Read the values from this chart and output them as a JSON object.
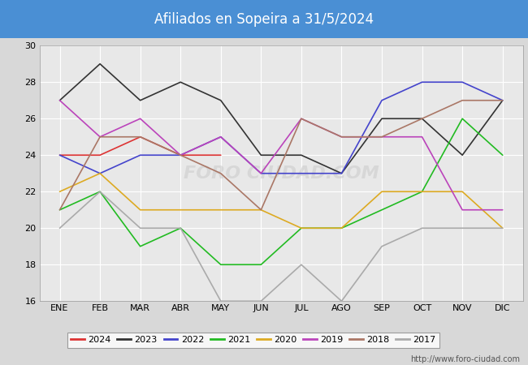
{
  "title": "Afiliados en Sopeira a 31/5/2024",
  "title_bg": "#4a8fd4",
  "title_color": "white",
  "months": [
    "ENE",
    "FEB",
    "MAR",
    "ABR",
    "MAY",
    "JUN",
    "JUL",
    "AGO",
    "SEP",
    "OCT",
    "NOV",
    "DIC"
  ],
  "ylim": [
    16,
    30
  ],
  "yticks": [
    16,
    18,
    20,
    22,
    24,
    26,
    28,
    30
  ],
  "year_order": [
    "2024",
    "2023",
    "2022",
    "2021",
    "2020",
    "2019",
    "2018",
    "2017"
  ],
  "series": {
    "2024": {
      "color": "#dd3333",
      "data": [
        24,
        24,
        25,
        24,
        24,
        null,
        null,
        null,
        null,
        null,
        null,
        null
      ]
    },
    "2023": {
      "color": "#333333",
      "data": [
        27,
        29,
        27,
        28,
        27,
        24,
        24,
        23,
        26,
        26,
        24,
        27
      ]
    },
    "2022": {
      "color": "#4444cc",
      "data": [
        24,
        23,
        24,
        24,
        25,
        23,
        23,
        23,
        27,
        28,
        28,
        27
      ]
    },
    "2021": {
      "color": "#22bb22",
      "data": [
        21,
        22,
        19,
        20,
        18,
        18,
        20,
        20,
        21,
        22,
        26,
        24
      ]
    },
    "2020": {
      "color": "#ddaa22",
      "data": [
        22,
        23,
        21,
        21,
        21,
        21,
        20,
        20,
        22,
        22,
        22,
        20
      ]
    },
    "2019": {
      "color": "#bb44bb",
      "data": [
        27,
        25,
        26,
        24,
        25,
        23,
        26,
        25,
        25,
        25,
        21,
        21
      ]
    },
    "2018": {
      "color": "#aa7766",
      "data": [
        21,
        25,
        25,
        24,
        23,
        21,
        26,
        25,
        25,
        26,
        27,
        27
      ]
    },
    "2017": {
      "color": "#aaaaaa",
      "data": [
        20,
        22,
        20,
        20,
        16,
        16,
        18,
        16,
        19,
        20,
        20,
        20
      ]
    }
  },
  "watermark": "FORO CIUDAD.COM",
  "url": "http://www.foro-ciudad.com",
  "bg_color": "#d8d8d8",
  "plot_bg": "#e8e8e8",
  "grid_color": "white",
  "title_fontsize": 12,
  "tick_fontsize": 8,
  "legend_fontsize": 8,
  "url_fontsize": 7,
  "line_width": 1.2
}
